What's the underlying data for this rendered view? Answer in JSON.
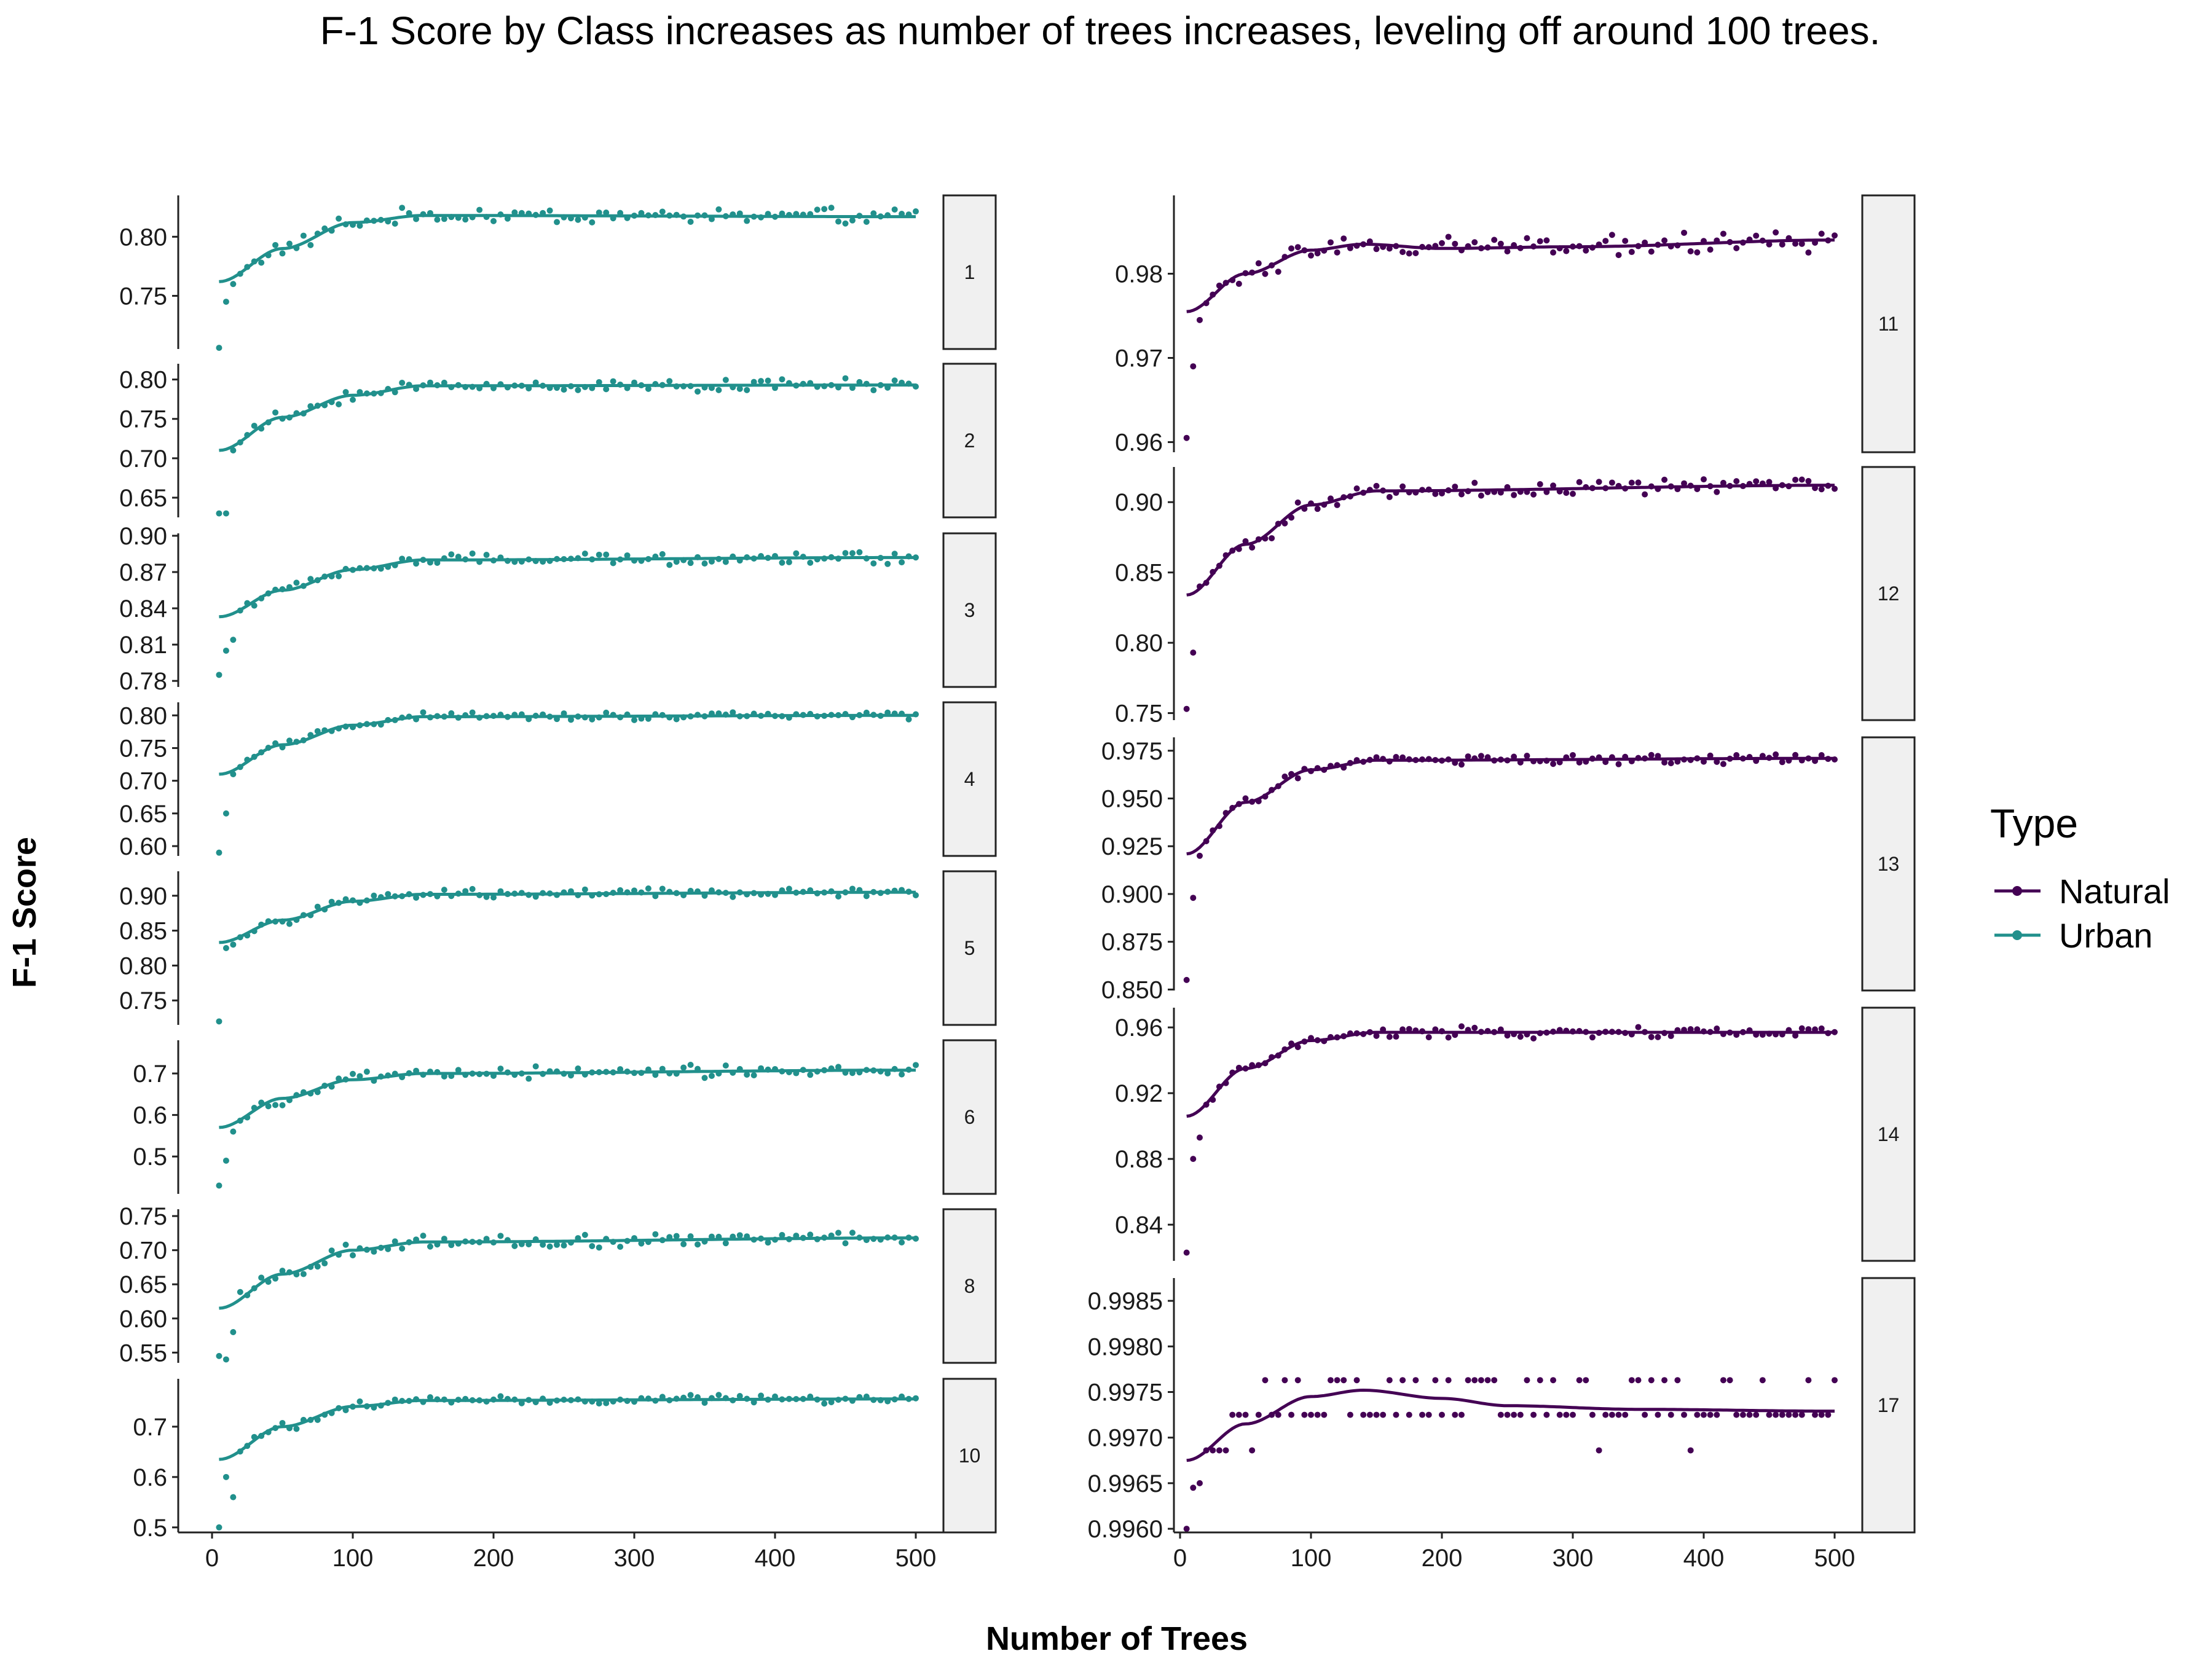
{
  "title": "F-1 Score by Class increases as number of trees increases, leveling off around 100 trees.",
  "xlabel": "Number of Trees",
  "ylabel": "F-1 Score",
  "legend": {
    "title": "Type",
    "items": [
      {
        "label": "Natural",
        "color": "#440154"
      },
      {
        "label": "Urban",
        "color": "#21908C"
      }
    ]
  },
  "chart_data": {
    "type": "scatter",
    "facet_layout": "two columns of stacked panels, independent y scales, shared x scale",
    "xlim": [
      0,
      500
    ],
    "x_ticks": [
      0,
      100,
      200,
      300,
      400,
      500
    ],
    "point_x_spacing": 5,
    "smooth": "fitted curve per panel",
    "panels": [
      {
        "label": "1",
        "type": "Urban",
        "column": "left",
        "y_ticks": [
          "0.75",
          "0.80"
        ],
        "ylim": [
          0.705,
          0.835
        ],
        "start": [
          0.706,
          0.745,
          0.76
        ],
        "curve": [
          [
            5,
            0.762
          ],
          [
            50,
            0.79
          ],
          [
            100,
            0.812
          ],
          [
            150,
            0.818
          ],
          [
            500,
            0.817
          ]
        ],
        "plateau": 0.817,
        "noise": 0.008
      },
      {
        "label": "2",
        "type": "Urban",
        "column": "left",
        "y_ticks": [
          "0.65",
          "0.70",
          "0.75",
          "0.80"
        ],
        "ylim": [
          0.625,
          0.82
        ],
        "start": [
          0.63,
          0.63,
          0.71
        ],
        "curve": [
          [
            5,
            0.71
          ],
          [
            50,
            0.752
          ],
          [
            100,
            0.78
          ],
          [
            150,
            0.792
          ],
          [
            500,
            0.793
          ]
        ],
        "plateau": 0.793,
        "noise": 0.009
      },
      {
        "label": "3",
        "type": "Urban",
        "column": "left",
        "y_ticks": [
          "0.78",
          "0.81",
          "0.84",
          "0.87",
          "0.90"
        ],
        "ylim": [
          0.775,
          0.902
        ],
        "start": [
          0.785,
          0.805,
          0.814
        ],
        "curve": [
          [
            5,
            0.833
          ],
          [
            50,
            0.855
          ],
          [
            100,
            0.872
          ],
          [
            150,
            0.88
          ],
          [
            500,
            0.882
          ]
        ],
        "plateau": 0.882,
        "noise": 0.006
      },
      {
        "label": "4",
        "type": "Urban",
        "column": "left",
        "y_ticks": [
          "0.60",
          "0.65",
          "0.70",
          "0.75",
          "0.80"
        ],
        "ylim": [
          0.585,
          0.82
        ],
        "start": [
          0.59,
          0.65,
          0.71
        ],
        "curve": [
          [
            5,
            0.71
          ],
          [
            50,
            0.755
          ],
          [
            100,
            0.785
          ],
          [
            150,
            0.798
          ],
          [
            500,
            0.8
          ]
        ],
        "plateau": 0.8,
        "noise": 0.007
      },
      {
        "label": "5",
        "type": "Urban",
        "column": "left",
        "y_ticks": [
          "0.75",
          "0.80",
          "0.85",
          "0.90"
        ],
        "ylim": [
          0.715,
          0.935
        ],
        "start": [
          0.72,
          0.825,
          0.83
        ],
        "curve": [
          [
            5,
            0.833
          ],
          [
            50,
            0.865
          ],
          [
            100,
            0.892
          ],
          [
            150,
            0.902
          ],
          [
            500,
            0.905
          ]
        ],
        "plateau": 0.905,
        "noise": 0.008
      },
      {
        "label": "6",
        "type": "Urban",
        "column": "left",
        "y_ticks": [
          "0.5",
          "0.6",
          "0.7"
        ],
        "ylim": [
          0.41,
          0.78
        ],
        "start": [
          0.43,
          0.49,
          0.56
        ],
        "curve": [
          [
            5,
            0.57
          ],
          [
            50,
            0.64
          ],
          [
            100,
            0.685
          ],
          [
            150,
            0.7
          ],
          [
            500,
            0.708
          ]
        ],
        "plateau": 0.705,
        "noise": 0.018
      },
      {
        "label": "8",
        "type": "Urban",
        "column": "left",
        "y_ticks": [
          "0.55",
          "0.60",
          "0.65",
          "0.70",
          "0.75"
        ],
        "ylim": [
          0.535,
          0.76
        ],
        "start": [
          0.545,
          0.54,
          0.58
        ],
        "curve": [
          [
            5,
            0.615
          ],
          [
            50,
            0.665
          ],
          [
            100,
            0.7
          ],
          [
            150,
            0.712
          ],
          [
            500,
            0.718
          ]
        ],
        "plateau": 0.716,
        "noise": 0.012
      },
      {
        "label": "10",
        "type": "Urban",
        "column": "left",
        "y_ticks": [
          "0.5",
          "0.6",
          "0.7"
        ],
        "ylim": [
          0.49,
          0.795
        ],
        "start": [
          0.5,
          0.6,
          0.56
        ],
        "curve": [
          [
            5,
            0.635
          ],
          [
            50,
            0.7
          ],
          [
            100,
            0.74
          ],
          [
            150,
            0.752
          ],
          [
            500,
            0.755
          ]
        ],
        "plateau": 0.755,
        "noise": 0.01
      },
      {
        "label": "11",
        "type": "Natural",
        "column": "right",
        "y_ticks": [
          "0.96",
          "0.97",
          "0.98"
        ],
        "ylim": [
          0.9588,
          0.9893
        ],
        "start": [
          0.9605,
          0.969,
          0.9745
        ],
        "curve": [
          [
            5,
            0.9755
          ],
          [
            50,
            0.98
          ],
          [
            100,
            0.9828
          ],
          [
            140,
            0.9835
          ],
          [
            200,
            0.983
          ],
          [
            300,
            0.9832
          ],
          [
            500,
            0.984
          ]
        ],
        "plateau": 0.9835,
        "noise": 0.0015
      },
      {
        "label": "12",
        "type": "Natural",
        "column": "right",
        "y_ticks": [
          "0.75",
          "0.80",
          "0.85",
          "0.90"
        ],
        "ylim": [
          0.745,
          0.925
        ],
        "start": [
          0.753,
          0.793,
          0.84
        ],
        "curve": [
          [
            5,
            0.834
          ],
          [
            50,
            0.87
          ],
          [
            100,
            0.898
          ],
          [
            150,
            0.908
          ],
          [
            500,
            0.912
          ]
        ],
        "plateau": 0.91,
        "noise": 0.006
      },
      {
        "label": "13",
        "type": "Natural",
        "column": "right",
        "y_ticks": [
          "0.850",
          "0.875",
          "0.900",
          "0.925",
          "0.950",
          "0.975"
        ],
        "ylim": [
          0.8495,
          0.982
        ],
        "start": [
          0.855,
          0.898,
          0.92
        ],
        "curve": [
          [
            5,
            0.921
          ],
          [
            50,
            0.948
          ],
          [
            100,
            0.965
          ],
          [
            150,
            0.97
          ],
          [
            500,
            0.971
          ]
        ],
        "plateau": 0.971,
        "noise": 0.003
      },
      {
        "label": "14",
        "type": "Natural",
        "column": "right",
        "y_ticks": [
          "0.84",
          "0.88",
          "0.92",
          "0.96"
        ],
        "ylim": [
          0.818,
          0.972
        ],
        "start": [
          0.823,
          0.88,
          0.893
        ],
        "curve": [
          [
            5,
            0.906
          ],
          [
            50,
            0.935
          ],
          [
            100,
            0.952
          ],
          [
            150,
            0.957
          ],
          [
            500,
            0.957
          ]
        ],
        "plateau": 0.957,
        "noise": 0.004
      },
      {
        "label": "17",
        "type": "Natural",
        "column": "right",
        "y_ticks": [
          "0.9960",
          "0.9965",
          "0.9970",
          "0.9975",
          "0.9980",
          "0.9985"
        ],
        "ylim": [
          0.99596,
          0.99875
        ],
        "start": [
          0.996,
          0.99645,
          0.9965
        ],
        "curve": [
          [
            5,
            0.99675
          ],
          [
            50,
            0.99715
          ],
          [
            100,
            0.99745
          ],
          [
            140,
            0.99752
          ],
          [
            200,
            0.99743
          ],
          [
            250,
            0.99735
          ],
          [
            350,
            0.99731
          ],
          [
            500,
            0.99729
          ]
        ],
        "plateau": 0.99729,
        "quantized_levels": [
          0.99686,
          0.99725,
          0.99763,
          0.99804
        ],
        "noise": 0.0003
      }
    ]
  }
}
